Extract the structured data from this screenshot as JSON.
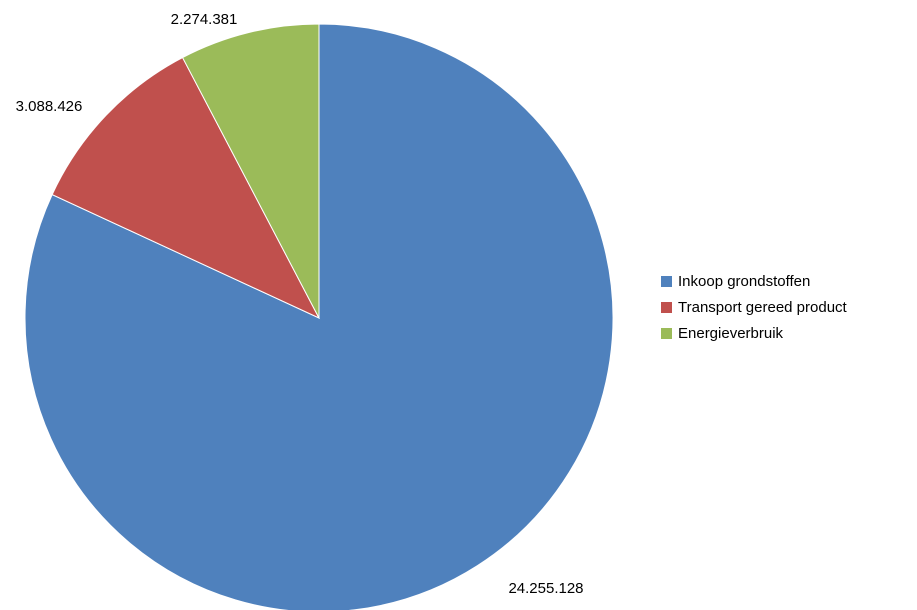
{
  "chart_data": {
    "type": "pie",
    "categories": [
      "Inkoop grondstoffen",
      "Transport gereed product",
      "Energieverbruik"
    ],
    "values": [
      24255128,
      3088426,
      2274381
    ],
    "data_labels": [
      "24.255.128",
      "3.088.426",
      "2.274.381"
    ],
    "colors": [
      "#4f81bd",
      "#c0504d",
      "#9bbb59"
    ],
    "legend_position": "right",
    "start": "12 o'clock, clockwise"
  }
}
